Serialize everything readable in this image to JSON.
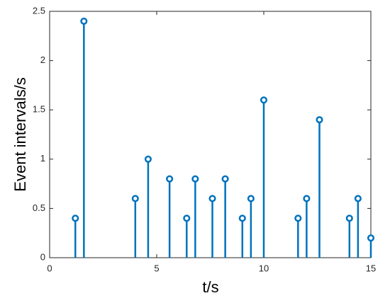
{
  "chart_data": {
    "type": "stem",
    "xlabel": "t/s",
    "ylabel": "Event intervals/s",
    "x": [
      1.2,
      1.6,
      4.0,
      4.6,
      5.6,
      6.4,
      6.8,
      7.6,
      8.2,
      9.0,
      9.4,
      10.0,
      11.6,
      12.0,
      12.6,
      14.0,
      14.4,
      15.0
    ],
    "values": [
      0.4,
      2.4,
      0.6,
      1.0,
      0.8,
      0.4,
      0.8,
      0.6,
      0.8,
      0.4,
      0.6,
      1.6,
      0.4,
      0.6,
      1.4,
      0.4,
      0.6,
      0.2
    ],
    "color": "#0072bd",
    "xlim": [
      0,
      15
    ],
    "xticks": [
      0,
      5,
      10,
      15
    ],
    "ylim": [
      0,
      2.5
    ],
    "yticks": [
      0,
      0.5,
      1,
      1.5,
      2,
      2.5
    ],
    "grid": false
  }
}
